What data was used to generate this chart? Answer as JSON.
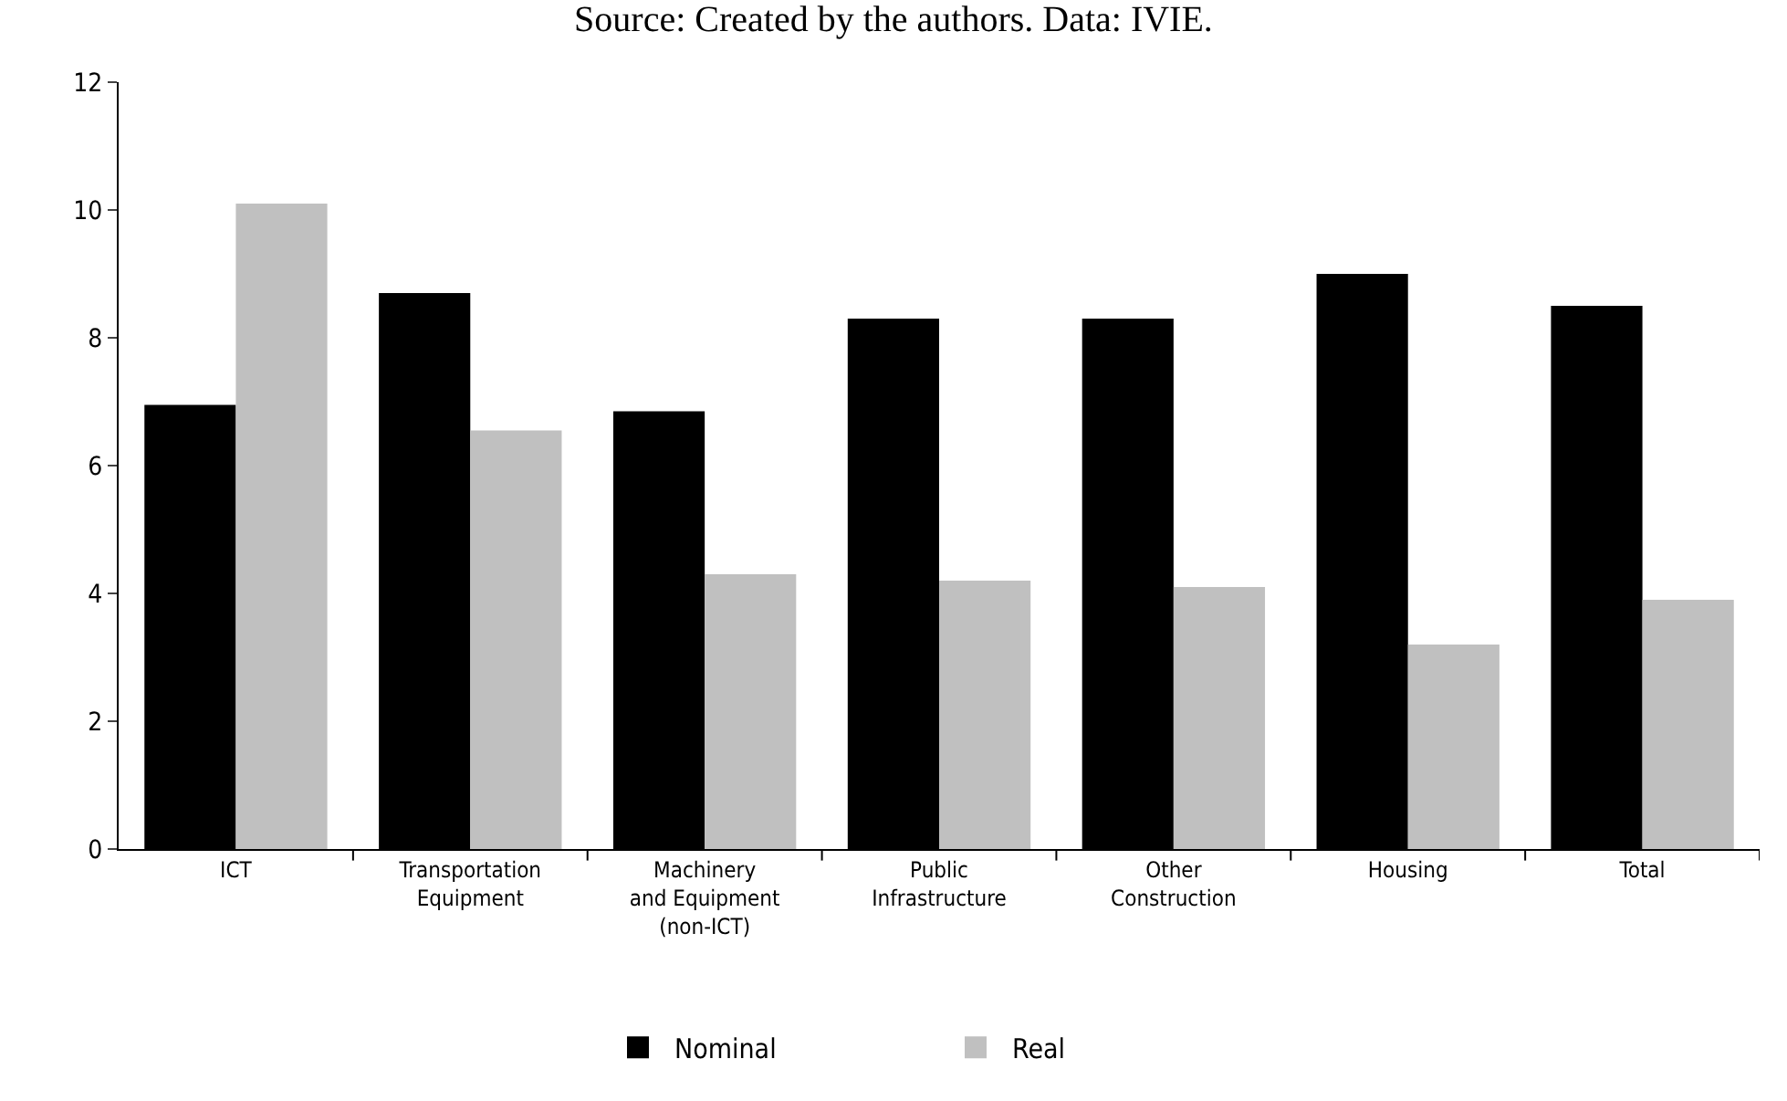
{
  "chart_data": {
    "type": "bar",
    "title": "Source: Created by the authors. Data: IVIE.",
    "categories": [
      "ICT",
      "Transportation\nEquipment",
      "Machinery\nand Equipment\n(non-ICT)",
      "Public\nInfrastructure",
      "Other\nConstruction",
      "Housing",
      "Total"
    ],
    "series": [
      {
        "name": "Nominal",
        "color": "#000000",
        "values": [
          6.95,
          8.7,
          6.85,
          8.3,
          8.3,
          9.0,
          8.5
        ]
      },
      {
        "name": "Real",
        "color": "#c0c0c0",
        "values": [
          10.1,
          6.55,
          4.3,
          4.2,
          4.1,
          3.2,
          3.9
        ]
      }
    ],
    "ylim": [
      0,
      12
    ],
    "yticks": [
      0,
      2,
      4,
      6,
      8,
      10,
      12
    ],
    "grid": false,
    "legend": "bottom"
  }
}
